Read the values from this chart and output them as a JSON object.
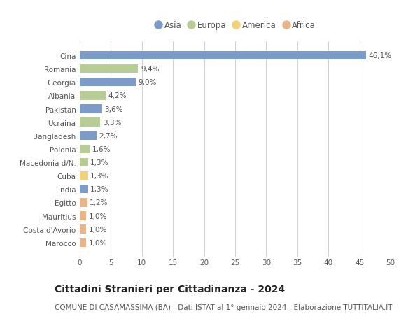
{
  "countries": [
    "Cina",
    "Romania",
    "Georgia",
    "Albania",
    "Pakistan",
    "Ucraina",
    "Bangladesh",
    "Polonia",
    "Macedonia d/N.",
    "Cuba",
    "India",
    "Egitto",
    "Mauritius",
    "Costa d'Avorio",
    "Marocco"
  ],
  "values": [
    46.1,
    9.4,
    9.0,
    4.2,
    3.6,
    3.3,
    2.7,
    1.6,
    1.3,
    1.3,
    1.3,
    1.2,
    1.0,
    1.0,
    1.0
  ],
  "labels": [
    "46,1%",
    "9,4%",
    "9,0%",
    "4,2%",
    "3,6%",
    "3,3%",
    "2,7%",
    "1,6%",
    "1,3%",
    "1,3%",
    "1,3%",
    "1,2%",
    "1,0%",
    "1,0%",
    "1,0%"
  ],
  "continents": [
    "Asia",
    "Europa",
    "Asia",
    "Europa",
    "Asia",
    "Europa",
    "Asia",
    "Europa",
    "Europa",
    "America",
    "Asia",
    "Africa",
    "Africa",
    "Africa",
    "Africa"
  ],
  "colors": {
    "Asia": "#7b9bc8",
    "Europa": "#b8cc96",
    "America": "#f5d07a",
    "Africa": "#e8b48a"
  },
  "legend_order": [
    "Asia",
    "Europa",
    "America",
    "Africa"
  ],
  "title": "Cittadini Stranieri per Cittadinanza - 2024",
  "subtitle": "COMUNE DI CASAMASSIMA (BA) - Dati ISTAT al 1° gennaio 2024 - Elaborazione TUTTITALIA.IT",
  "xlim": [
    0,
    50
  ],
  "xticks": [
    0,
    5,
    10,
    15,
    20,
    25,
    30,
    35,
    40,
    45,
    50
  ],
  "background_color": "#ffffff",
  "grid_color": "#d0d0d0",
  "bar_height": 0.65,
  "title_fontsize": 10,
  "subtitle_fontsize": 7.5,
  "tick_fontsize": 7.5,
  "label_fontsize": 7.5,
  "legend_fontsize": 8.5
}
